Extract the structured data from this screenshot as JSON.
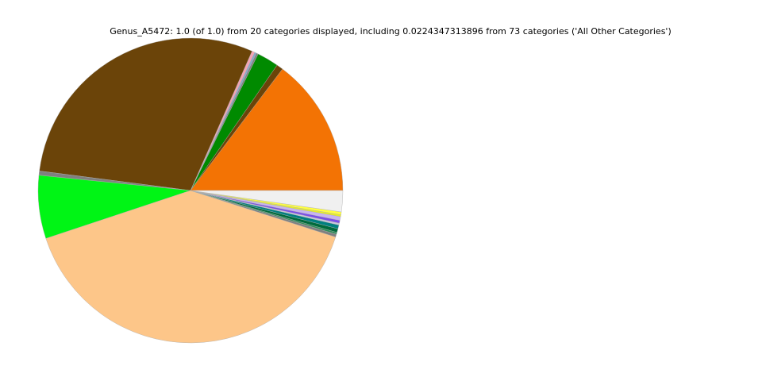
{
  "chart_data": {
    "type": "pie",
    "title": "Genus_A5472: 1.0 (of 1.0) from 20 categories displayed, including 0.0224347313896 from 73 categories ('All Other Categories')",
    "categories": [
      null,
      null,
      null,
      null,
      null,
      null,
      null,
      null,
      null,
      null,
      null,
      null,
      null,
      null,
      null,
      null,
      null,
      null,
      null,
      null
    ],
    "values": [
      0.147,
      0.007,
      0.023,
      0.002,
      0.002,
      0.003,
      0.296,
      0.0045,
      0.067,
      0.4,
      0.003,
      0.002,
      0.004,
      0.004,
      0.002,
      0.003,
      0.004,
      0.002,
      0.003,
      0.0224347313896
    ],
    "colors": [
      "#f37304",
      "#6b4409",
      "#008a00",
      "#7f7f7f",
      "#87a6c8",
      "#f4a4b4",
      "#6b4409",
      "#808080",
      "#00f515",
      "#fdc689",
      "#808080",
      "#2e8b57",
      "#006b3c",
      "#008080",
      "#c8c8dc",
      "#7b4ee8",
      "#c8b4f0",
      "#e8f020",
      "#ffff40",
      "#f0f0f0"
    ]
  }
}
